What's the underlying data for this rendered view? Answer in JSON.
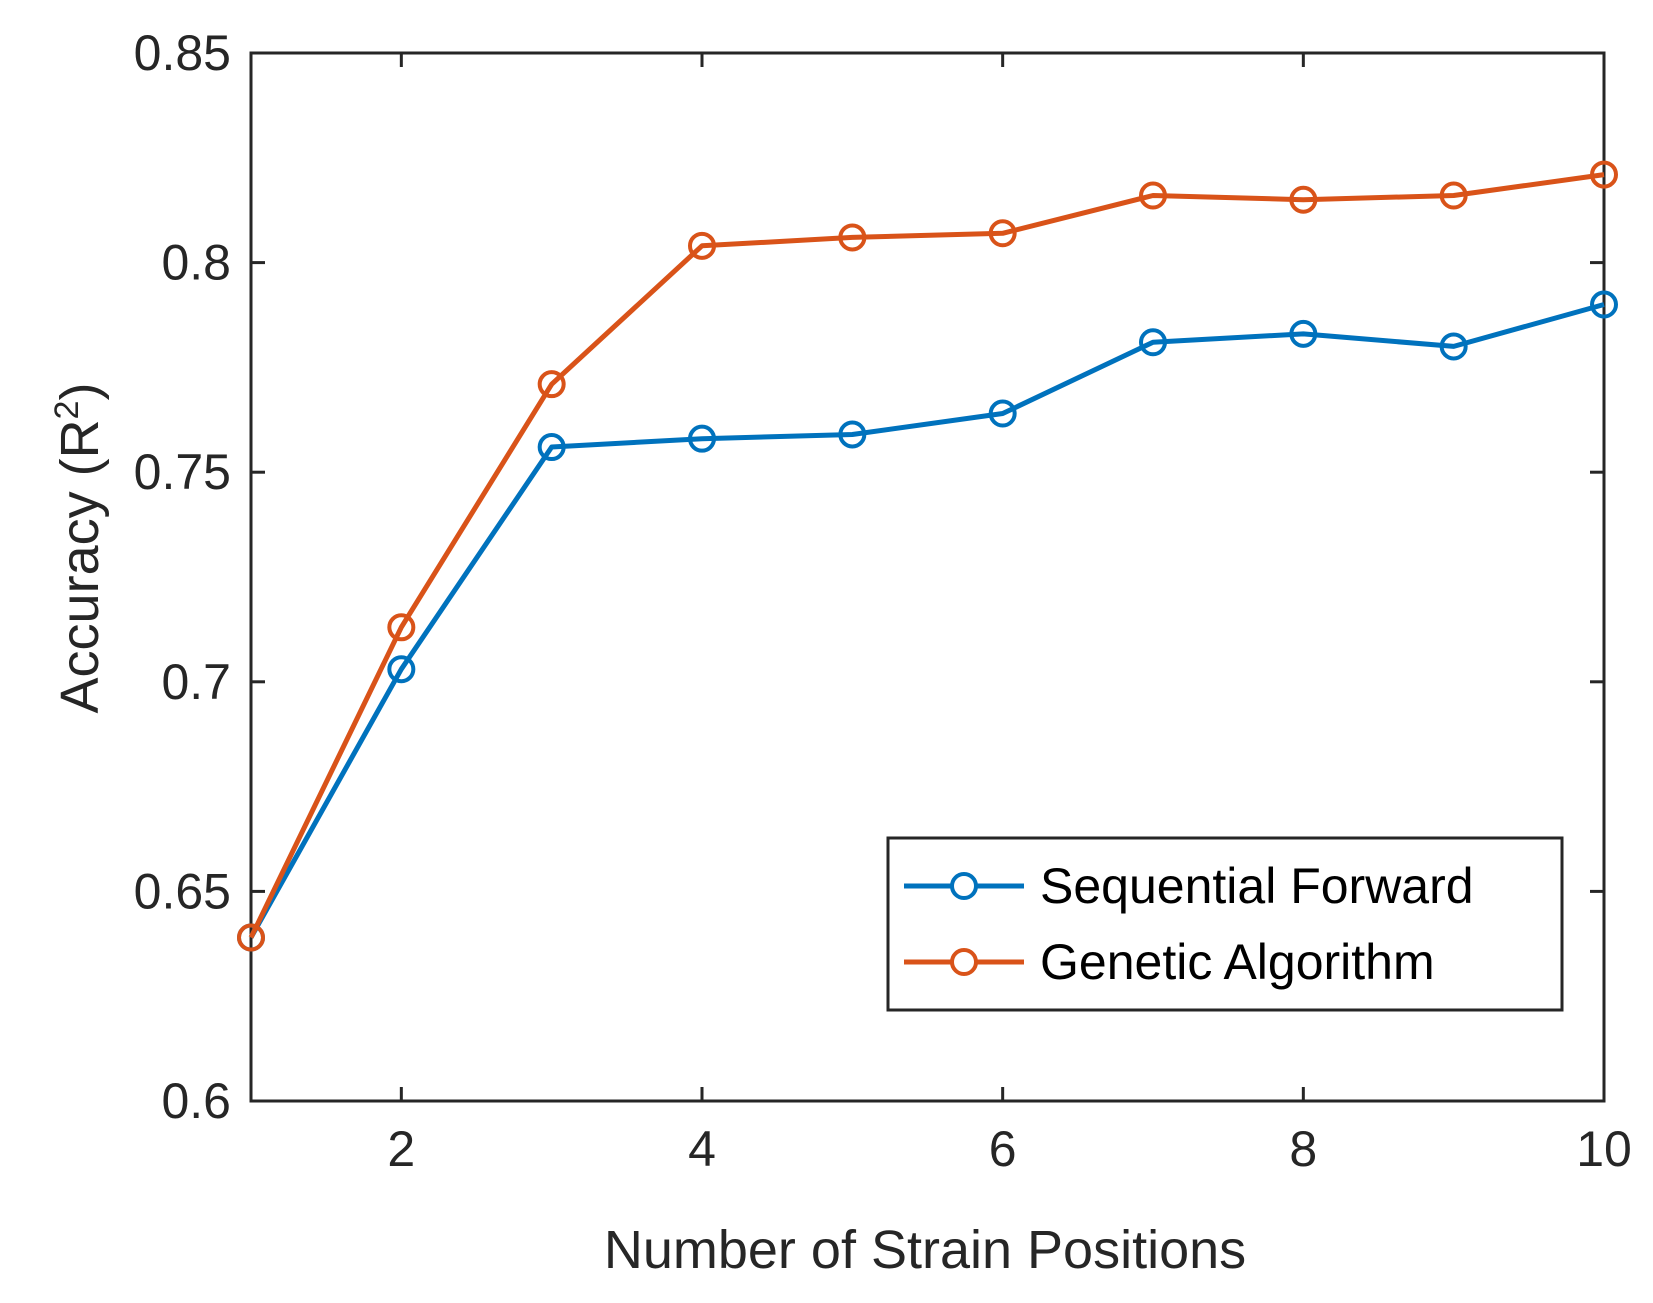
{
  "chart_data": {
    "type": "line",
    "title": "",
    "xlabel": "Number of Strain Positions",
    "ylabel_main": "Accuracy (R",
    "ylabel_sup": "2",
    "ylabel_close": ")",
    "xlim": [
      1,
      10
    ],
    "ylim": [
      0.6,
      0.85
    ],
    "xticks": [
      2,
      4,
      6,
      8,
      10
    ],
    "xtick_labels": [
      "2",
      "4",
      "6",
      "8",
      "10"
    ],
    "yticks": [
      0.6,
      0.65,
      0.7,
      0.75,
      0.8,
      0.85
    ],
    "ytick_labels": [
      "0.6",
      "0.65",
      "0.7",
      "0.75",
      "0.8",
      "0.85"
    ],
    "grid": false,
    "legend_position": "lower-right",
    "x": [
      1,
      2,
      3,
      4,
      5,
      6,
      7,
      8,
      9,
      10
    ],
    "series": [
      {
        "name": "Sequential Forward",
        "color": "#0072BD",
        "marker": "open-circle",
        "values": [
          0.639,
          0.703,
          0.756,
          0.758,
          0.759,
          0.764,
          0.781,
          0.783,
          0.78,
          0.79
        ]
      },
      {
        "name": "Genetic Algorithm",
        "color": "#D95319",
        "marker": "open-circle",
        "values": [
          0.639,
          0.713,
          0.771,
          0.804,
          0.806,
          0.807,
          0.816,
          0.815,
          0.816,
          0.821
        ]
      }
    ]
  }
}
